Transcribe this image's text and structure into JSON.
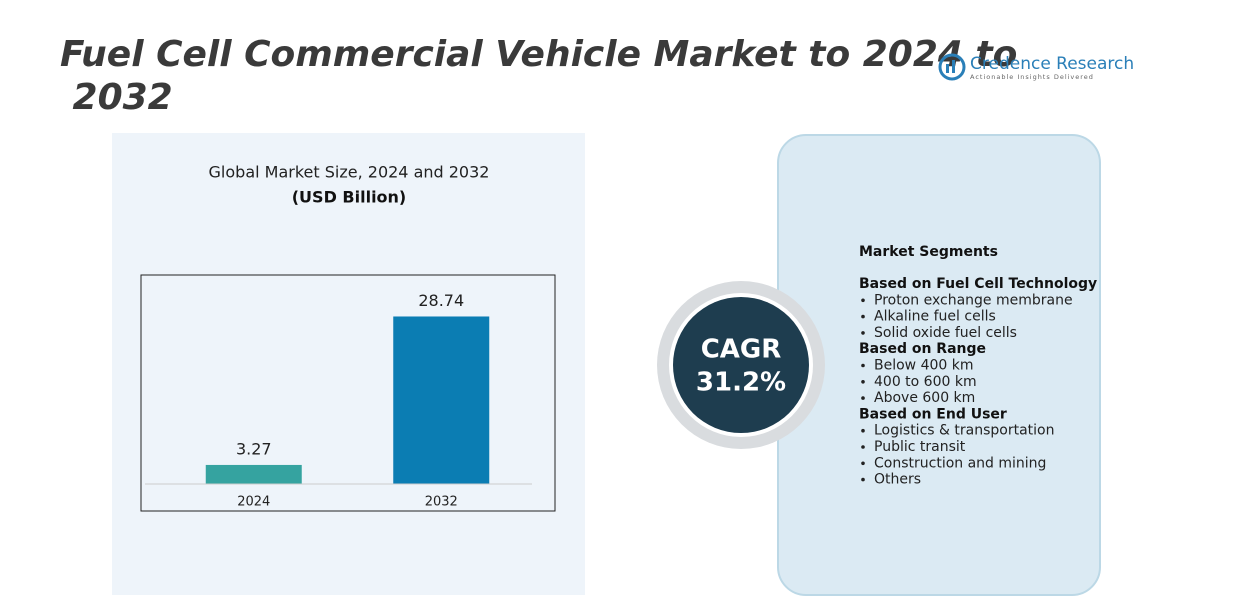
{
  "title": "Fuel Cell Commercial Vehicle Market to 2024 to 2032",
  "logo": {
    "name": "Credence Research",
    "tagline": "Actionable Insights Delivered"
  },
  "chart_data": {
    "type": "bar",
    "title": "Global Market Size, 2024 and 2032",
    "subtitle": "(USD Billion)",
    "categories": [
      "2024",
      "2032"
    ],
    "values": [
      3.27,
      28.74
    ],
    "value_labels": [
      "3.27",
      "28.74"
    ],
    "colors": [
      "#35a3a0",
      "#0b7db3"
    ],
    "ylim": [
      0,
      35
    ]
  },
  "cagr": {
    "label": "CAGR",
    "value": "31.2%"
  },
  "segments": {
    "title": "Market Segments",
    "groups": [
      {
        "heading": "Based on Fuel Cell Technology",
        "items": [
          "Proton exchange membrane",
          "Alkaline fuel cells",
          "Solid oxide fuel cells"
        ]
      },
      {
        "heading": "Based on Range",
        "items": [
          "Below 400 km",
          "400 to 600 km",
          "Above 600 km"
        ]
      },
      {
        "heading": "Based on End User",
        "items": [
          "Logistics & transportation",
          "Public transit",
          "Construction and mining",
          "Others"
        ]
      }
    ]
  }
}
